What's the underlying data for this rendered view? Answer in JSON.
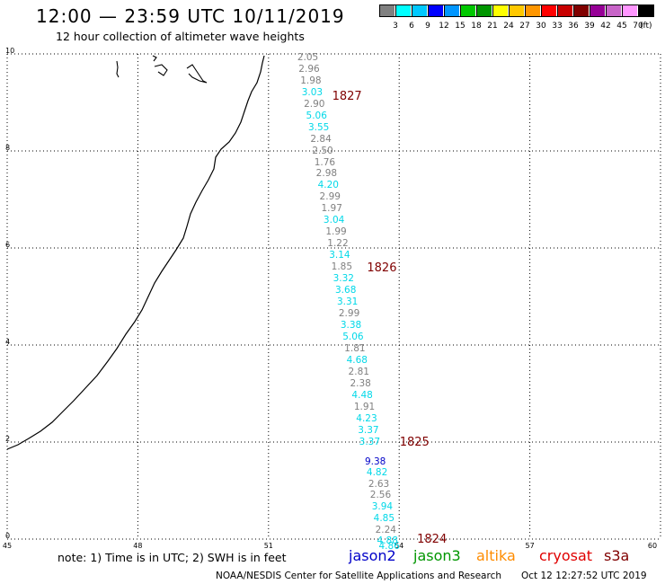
{
  "header": {
    "title": "12:00 — 23:59 UTC 10/11/2019",
    "subtitle": "12 hour collection of altimeter wave heights"
  },
  "colorbar": {
    "colors": [
      "#808080",
      "#00ffff",
      "#00c8ff",
      "#0000ff",
      "#0096ff",
      "#00c800",
      "#009600",
      "#ffff00",
      "#ffc800",
      "#ff9600",
      "#ff0000",
      "#c80000",
      "#800000",
      "#960096",
      "#c864c8",
      "#ff96ff",
      "#000000"
    ],
    "labels": [
      "3",
      "6",
      "9",
      "12",
      "15",
      "18",
      "21",
      "24",
      "27",
      "30",
      "33",
      "36",
      "39",
      "42",
      "45",
      "70"
    ],
    "unit": "(ft)"
  },
  "axes": {
    "x_ticks": [
      "45",
      "48",
      "51",
      "54",
      "57",
      "60"
    ],
    "y_ticks": [
      "0",
      "2",
      "4",
      "6",
      "8",
      "10"
    ],
    "x_range": [
      45,
      60
    ],
    "y_range": [
      0,
      10
    ]
  },
  "satellite_colors": {
    "jason2": "#0000c8",
    "jason3": "#009600",
    "altika": "#ff8c00",
    "cryosat": "#e00000",
    "s3a": "#800000",
    "other": "#808080",
    "cyan": "#00d8e8"
  },
  "observations": [
    {
      "lon": 51.95,
      "lat": 9.9,
      "value": "2.05",
      "sat": "other"
    },
    {
      "lon": 51.98,
      "lat": 9.66,
      "value": "2.96",
      "sat": "other"
    },
    {
      "lon": 52.02,
      "lat": 9.42,
      "value": "1.98",
      "sat": "other"
    },
    {
      "lon": 52.05,
      "lat": 9.18,
      "value": "3.03",
      "sat": "cyan"
    },
    {
      "lon": 52.1,
      "lat": 8.94,
      "value": "2.90",
      "sat": "other"
    },
    {
      "lon": 52.15,
      "lat": 8.7,
      "value": "5.06",
      "sat": "cyan"
    },
    {
      "lon": 52.2,
      "lat": 8.46,
      "value": "3.55",
      "sat": "cyan"
    },
    {
      "lon": 52.25,
      "lat": 8.22,
      "value": "2.84",
      "sat": "other"
    },
    {
      "lon": 52.29,
      "lat": 7.99,
      "value": "2.50",
      "sat": "other"
    },
    {
      "lon": 52.34,
      "lat": 7.75,
      "value": "1.76",
      "sat": "other"
    },
    {
      "lon": 52.38,
      "lat": 7.51,
      "value": "2.98",
      "sat": "other"
    },
    {
      "lon": 52.42,
      "lat": 7.27,
      "value": "4.20",
      "sat": "cyan"
    },
    {
      "lon": 52.46,
      "lat": 7.03,
      "value": "2.99",
      "sat": "other"
    },
    {
      "lon": 52.5,
      "lat": 6.79,
      "value": "1.97",
      "sat": "other"
    },
    {
      "lon": 52.55,
      "lat": 6.55,
      "value": "3.04",
      "sat": "cyan"
    },
    {
      "lon": 52.6,
      "lat": 6.31,
      "value": "1.99",
      "sat": "other"
    },
    {
      "lon": 52.64,
      "lat": 6.07,
      "value": "1.22",
      "sat": "other"
    },
    {
      "lon": 52.68,
      "lat": 5.83,
      "value": "3.14",
      "sat": "cyan"
    },
    {
      "lon": 52.73,
      "lat": 5.59,
      "value": "1.85",
      "sat": "other"
    },
    {
      "lon": 52.77,
      "lat": 5.35,
      "value": "3.32",
      "sat": "cyan"
    },
    {
      "lon": 52.82,
      "lat": 5.11,
      "value": "3.68",
      "sat": "cyan"
    },
    {
      "lon": 52.86,
      "lat": 4.87,
      "value": "3.31",
      "sat": "cyan"
    },
    {
      "lon": 52.9,
      "lat": 4.63,
      "value": "2.99",
      "sat": "other"
    },
    {
      "lon": 52.94,
      "lat": 4.39,
      "value": "3.38",
      "sat": "cyan"
    },
    {
      "lon": 52.99,
      "lat": 4.15,
      "value": "5.06",
      "sat": "cyan"
    },
    {
      "lon": 53.03,
      "lat": 3.91,
      "value": "1.81",
      "sat": "other"
    },
    {
      "lon": 53.08,
      "lat": 3.67,
      "value": "4.68",
      "sat": "cyan"
    },
    {
      "lon": 53.12,
      "lat": 3.43,
      "value": "2.81",
      "sat": "other"
    },
    {
      "lon": 53.16,
      "lat": 3.19,
      "value": "2.38",
      "sat": "other"
    },
    {
      "lon": 53.2,
      "lat": 2.95,
      "value": "4.48",
      "sat": "cyan"
    },
    {
      "lon": 53.25,
      "lat": 2.71,
      "value": "1.91",
      "sat": "other"
    },
    {
      "lon": 53.3,
      "lat": 2.47,
      "value": "4.23",
      "sat": "cyan"
    },
    {
      "lon": 53.34,
      "lat": 2.23,
      "value": "3.37",
      "sat": "cyan"
    },
    {
      "lon": 53.37,
      "lat": 1.99,
      "value": "3.37",
      "sat": "cyan"
    },
    {
      "lon": 53.5,
      "lat": 1.58,
      "value": "9.38",
      "sat": "jason2"
    },
    {
      "lon": 53.54,
      "lat": 1.35,
      "value": "4.82",
      "sat": "cyan"
    },
    {
      "lon": 53.58,
      "lat": 1.12,
      "value": "2.63",
      "sat": "other"
    },
    {
      "lon": 53.62,
      "lat": 0.88,
      "value": "2.56",
      "sat": "other"
    },
    {
      "lon": 53.66,
      "lat": 0.65,
      "value": "3.94",
      "sat": "cyan"
    },
    {
      "lon": 53.7,
      "lat": 0.41,
      "value": "4.85",
      "sat": "cyan"
    },
    {
      "lon": 53.74,
      "lat": 0.17,
      "value": "2.24",
      "sat": "other"
    },
    {
      "lon": 53.78,
      "lat": -0.05,
      "value": "4.88",
      "sat": "cyan"
    },
    {
      "lon": 53.82,
      "lat": -0.17,
      "value": "4.86",
      "sat": "cyan"
    }
  ],
  "passes": [
    {
      "lon": 52.75,
      "lat": 9.12,
      "label": "1827"
    },
    {
      "lon": 53.55,
      "lat": 5.57,
      "label": "1826"
    },
    {
      "lon": 54.3,
      "lat": 1.98,
      "label": "1825"
    },
    {
      "lon": 54.7,
      "lat": -0.01,
      "label": "1824"
    }
  ],
  "legend": {
    "note": "note:  1) Time is in UTC;  2) SWH is in feet",
    "satellites": [
      {
        "name": "jason2",
        "key": "jason2"
      },
      {
        "name": "jason3",
        "key": "jason3"
      },
      {
        "name": "altika",
        "key": "altika"
      },
      {
        "name": "cryosat",
        "key": "cryosat"
      },
      {
        "name": "s3a",
        "key": "s3a"
      }
    ]
  },
  "footer": {
    "credit": "NOAA/NESDIS Center for Satellite Applications and Research",
    "timestamp": "Oct 12 12:27:52 UTC 2019"
  }
}
